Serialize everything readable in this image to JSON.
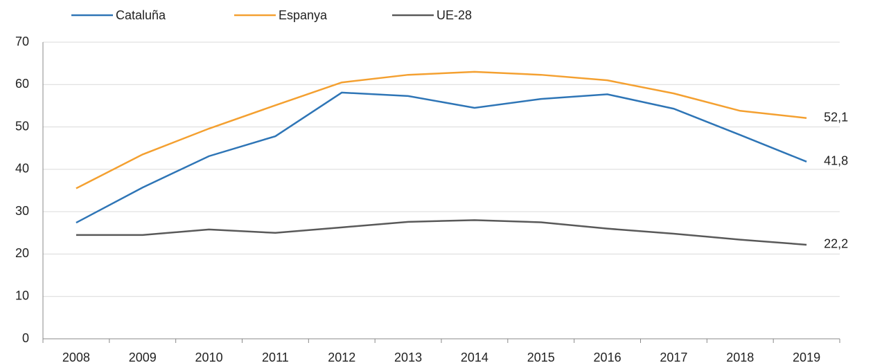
{
  "chart_data": {
    "type": "line",
    "categories": [
      "2008",
      "2009",
      "2010",
      "2011",
      "2012",
      "2013",
      "2014",
      "2015",
      "2016",
      "2017",
      "2018",
      "2019"
    ],
    "series": [
      {
        "name": "Cataluña",
        "color": "#2e75b6",
        "values": [
          27.4,
          35.7,
          43.1,
          47.8,
          58.1,
          57.3,
          54.5,
          56.6,
          57.7,
          54.3,
          48.1,
          41.8
        ],
        "value_labels": [
          null,
          null,
          null,
          null,
          null,
          null,
          null,
          null,
          null,
          null,
          null,
          "41,8"
        ]
      },
      {
        "name": "Espanya",
        "color": "#f4a030",
        "values": [
          35.5,
          43.5,
          49.6,
          55.1,
          60.5,
          62.3,
          63.0,
          62.3,
          61.0,
          57.9,
          53.8,
          52.1
        ],
        "value_labels": [
          null,
          null,
          null,
          null,
          null,
          null,
          null,
          null,
          null,
          null,
          null,
          "52,1"
        ]
      },
      {
        "name": "UE-28",
        "color": "#595959",
        "values": [
          24.5,
          24.5,
          25.8,
          25.0,
          26.3,
          27.6,
          28.0,
          27.5,
          26.0,
          24.8,
          23.4,
          22.2
        ],
        "value_labels": [
          null,
          null,
          null,
          null,
          null,
          null,
          null,
          null,
          null,
          null,
          null,
          "22,2"
        ]
      }
    ],
    "ylim": [
      0,
      70
    ],
    "yticks": [
      0,
      10,
      20,
      30,
      40,
      50,
      60,
      70
    ],
    "grid": true,
    "legend": "top"
  }
}
